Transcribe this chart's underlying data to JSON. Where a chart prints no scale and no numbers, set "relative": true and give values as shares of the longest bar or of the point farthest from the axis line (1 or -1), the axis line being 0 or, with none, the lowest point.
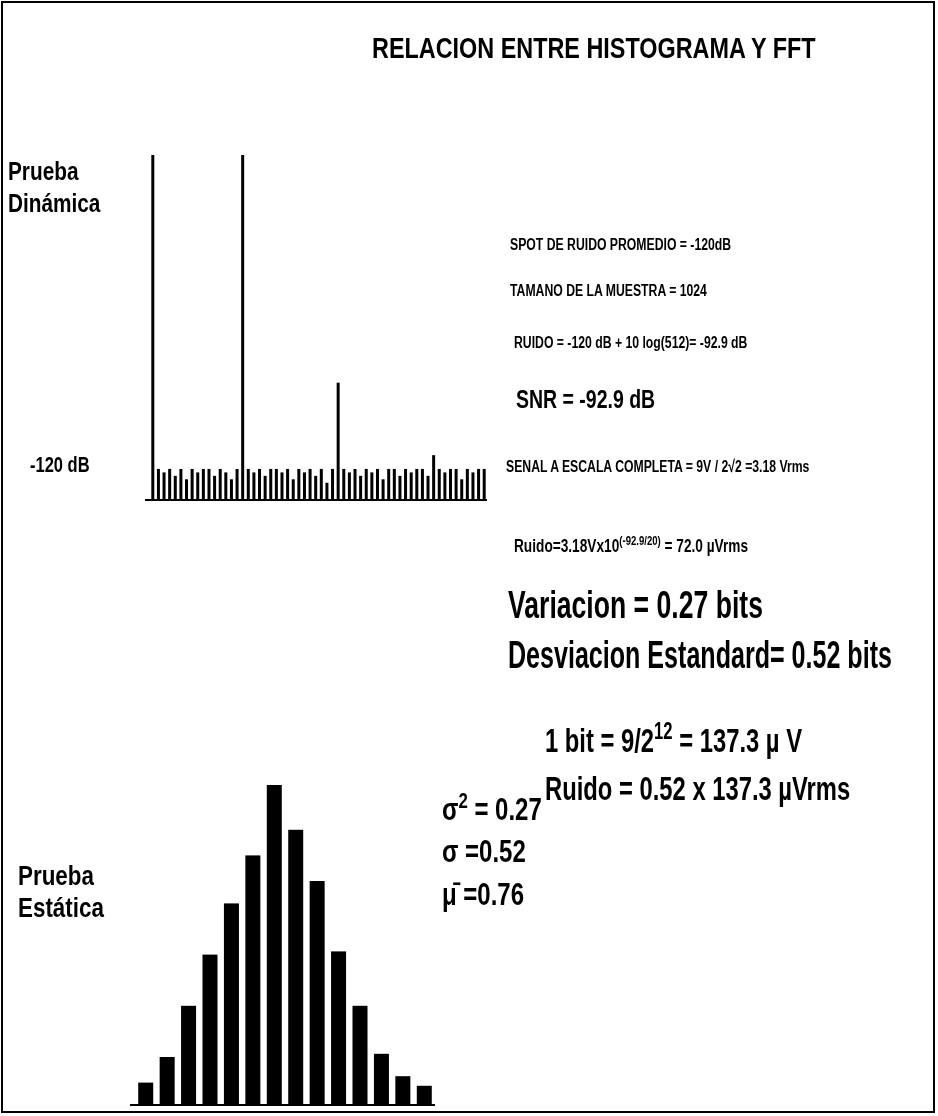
{
  "chart_data": [
    {
      "type": "bar",
      "title": "RELACION ENTRE HISTOGRAMA Y FFT",
      "ylabel": "Prueba Dinámica",
      "relative": true,
      "color": "#000000",
      "categories": [
        null,
        null,
        null,
        null,
        null,
        null,
        null,
        null,
        null,
        null,
        null,
        null,
        null,
        null,
        null,
        null,
        null,
        null,
        null,
        null,
        null,
        null,
        null,
        null,
        null,
        null,
        null,
        null,
        null,
        null,
        null,
        null,
        null,
        null,
        null,
        null,
        null,
        null,
        null,
        null,
        null,
        null,
        null,
        null,
        null,
        null,
        null,
        null,
        null,
        null,
        null,
        null,
        null,
        null,
        null,
        null,
        null,
        null,
        null,
        null
      ],
      "values": [
        1,
        0.09,
        0.08,
        0.09,
        0.07,
        0.09,
        0.06,
        0.09,
        0.08,
        0.09,
        0.09,
        0.07,
        0.09,
        0.08,
        0.06,
        0.09,
        1,
        0.09,
        0.08,
        0.09,
        0.07,
        0.09,
        0.09,
        0.08,
        0.09,
        0.06,
        0.09,
        0.08,
        0.09,
        0.07,
        0.09,
        0.05,
        0.09,
        0.34,
        0.09,
        0.08,
        0.09,
        0.07,
        0.09,
        0.08,
        0.09,
        0.06,
        0.09,
        0.09,
        0.07,
        0.09,
        0.08,
        0.09,
        0.09,
        0.07,
        0.13,
        0.09,
        0.08,
        0.09,
        0.09,
        0.06,
        0.09,
        0.08,
        0.09,
        0.09
      ],
      "annotations": [
        "-120 dB"
      ]
    },
    {
      "type": "bar",
      "ylabel": "Prueba Estática",
      "relative": true,
      "color": "#000000",
      "categories": [
        null,
        null,
        null,
        null,
        null,
        null,
        null,
        null,
        null,
        null,
        null,
        null,
        null,
        null
      ],
      "values": [
        0.07,
        0.15,
        0.31,
        0.47,
        0.63,
        0.78,
        1,
        0.86,
        0.7,
        0.48,
        0.31,
        0.16,
        0.09,
        0.06
      ],
      "annotations": [
        "σ$^{2}$ = 0.27",
        "σ =0.52",
        "μ̄ =0.76"
      ]
    },
    {
      "type": "other",
      "annotations": [
        "SPOT DE RUIDO PROMEDIO  = -120dB",
        "TAMANO DE LA MUESTRA   = 1024",
        "RUIDO = -120 dB + 10 log(512)= -92.9 dB",
        "SNR = -92.9 dB",
        "SENAL A ESCALA COMPLETA = 9V / 2√2 =3.18 Vrms",
        "Ruido=3.18Vx10$^{(-92.9/20)}$ = 72.0 µVrms",
        "Variacion = 0.27 bits",
        "Desviacion Estandard= 0.52 bits",
        "1 bit = 9/2$^{12}$ = 137.3 µ V",
        "Ruido = 0.52 x 137.3 µVrms"
      ]
    }
  ]
}
